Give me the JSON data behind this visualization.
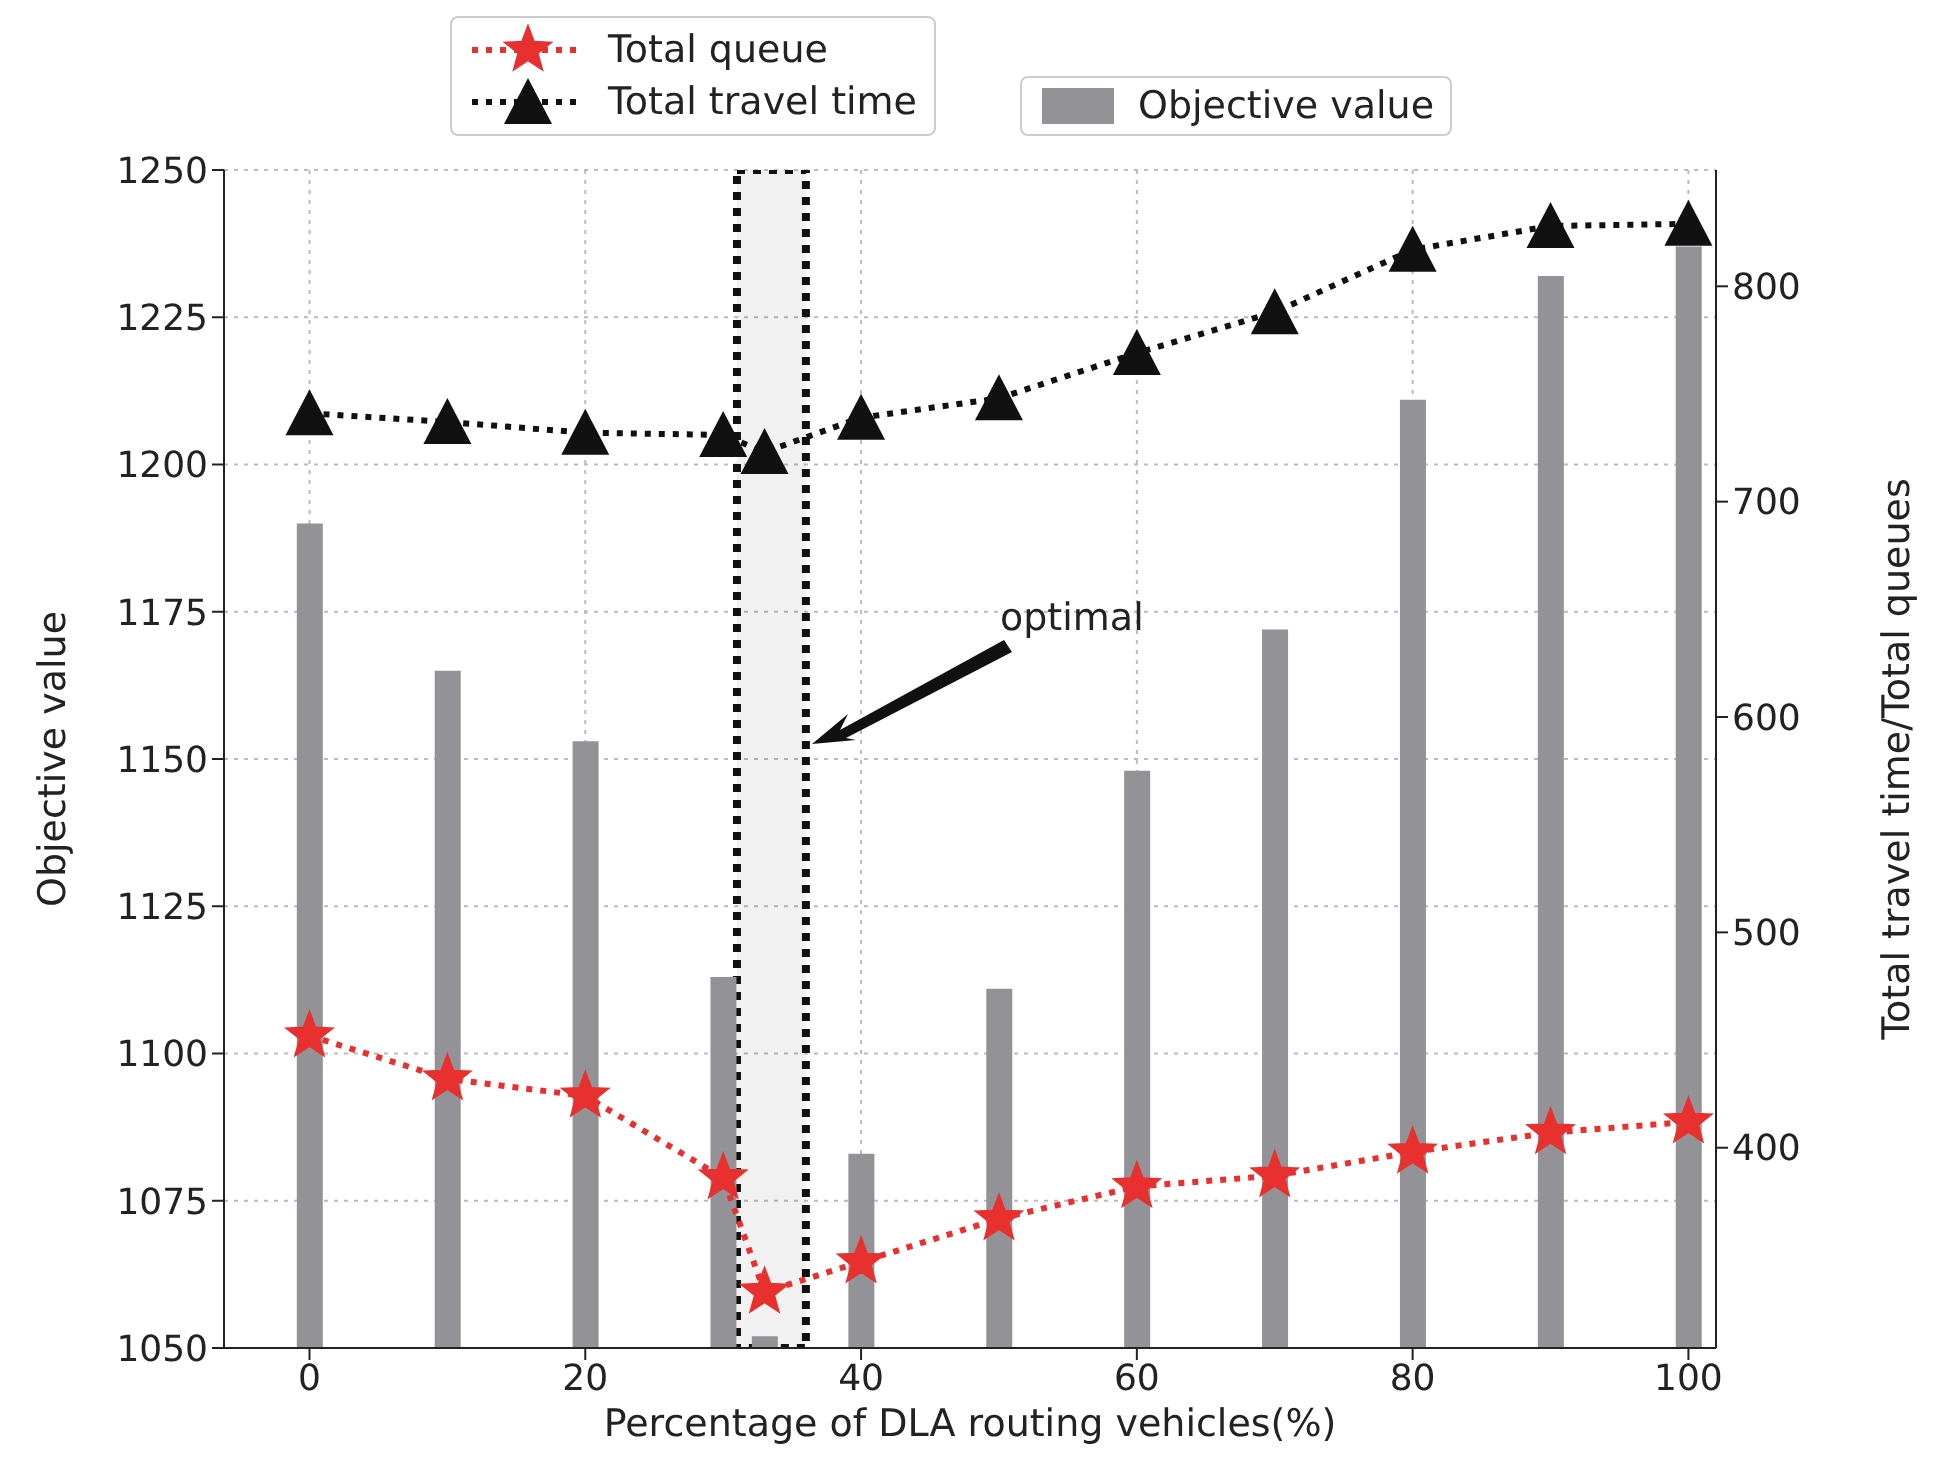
{
  "chart_data": {
    "type": "bar",
    "xlabel": "Percentage of DLA routing vehicles(%)",
    "ylabel": "Objective value",
    "y2label": "Total travel time/Total queues",
    "x": [
      0,
      10,
      20,
      30,
      33,
      40,
      50,
      60,
      70,
      80,
      90,
      100
    ],
    "series": [
      {
        "name": "Total queue",
        "type": "line",
        "axis": "y2",
        "color": "#e8312f",
        "marker": "star",
        "line_style": "dotted",
        "values": [
          452,
          432,
          424,
          386,
          333,
          347,
          367,
          382,
          387,
          398,
          407,
          412
        ]
      },
      {
        "name": "Total travel time",
        "type": "line",
        "axis": "y2",
        "color": "#111111",
        "marker": "triangle",
        "line_style": "dotted",
        "values": [
          741,
          737,
          732,
          731,
          723,
          739,
          748,
          769,
          788,
          817,
          828,
          829
        ]
      },
      {
        "name": "Objective value",
        "color": "#929297",
        "values": [
          1190,
          1165,
          1153,
          1113,
          1052,
          1083,
          1111,
          1148,
          1172,
          1211,
          1232,
          1237
        ]
      }
    ],
    "xlim": [
      -6.2,
      102
    ],
    "xticks": [
      0,
      20,
      40,
      60,
      80,
      100
    ],
    "ylim": [
      1050,
      1250
    ],
    "yticks": [
      1050,
      1075,
      1100,
      1125,
      1150,
      1175,
      1200,
      1225,
      1250
    ],
    "y2lim": [
      307,
      854
    ],
    "y2ticks": [
      400,
      500,
      600,
      700,
      800
    ],
    "annotations": [
      "optimal"
    ],
    "bands": [
      {
        "axis": "x",
        "from": 31,
        "to": 36,
        "color": "#111111"
      }
    ],
    "grid": true,
    "legend": "top"
  }
}
